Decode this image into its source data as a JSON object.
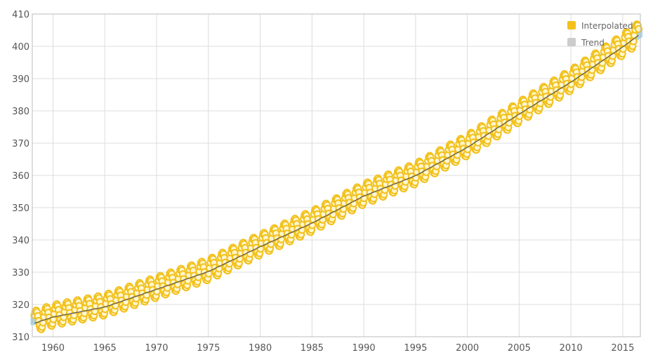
{
  "chart_data": {
    "type": "scatter",
    "title": "",
    "xlabel": "",
    "ylabel": "",
    "xlim": [
      1958,
      2016.7
    ],
    "ylim": [
      310,
      410
    ],
    "grid": true,
    "legend_position": "top-right",
    "x_ticks": [
      1960,
      1965,
      1970,
      1975,
      1980,
      1985,
      1990,
      1995,
      2000,
      2005,
      2010,
      2015
    ],
    "y_ticks": [
      310,
      320,
      330,
      340,
      350,
      360,
      370,
      380,
      390,
      400,
      410
    ],
    "trend_anchors": {
      "x": [
        1958.2,
        1960,
        1965,
        1970,
        1975,
        1980,
        1985,
        1990,
        1995,
        2000,
        2005,
        2010,
        2015,
        2016.6
      ],
      "y": [
        314.8,
        316.7,
        319.8,
        325.3,
        330.8,
        338.5,
        345.8,
        354.2,
        360.5,
        369.3,
        379.6,
        389.5,
        400.4,
        404.2
      ]
    },
    "seasonal_amplitude": 3.2,
    "series": [
      {
        "name": "Interpolated",
        "color": "#f2c11c",
        "marker": "circle-outline"
      },
      {
        "name": "Trend",
        "color": "#a8d8f0",
        "marker": "square"
      }
    ]
  },
  "colors": {
    "grid": "#dddddd",
    "axis": "#bbbbbb",
    "trend_line": "#555555",
    "interpolated": "#f2c11c",
    "trend_fill": "#a8d8f0"
  }
}
